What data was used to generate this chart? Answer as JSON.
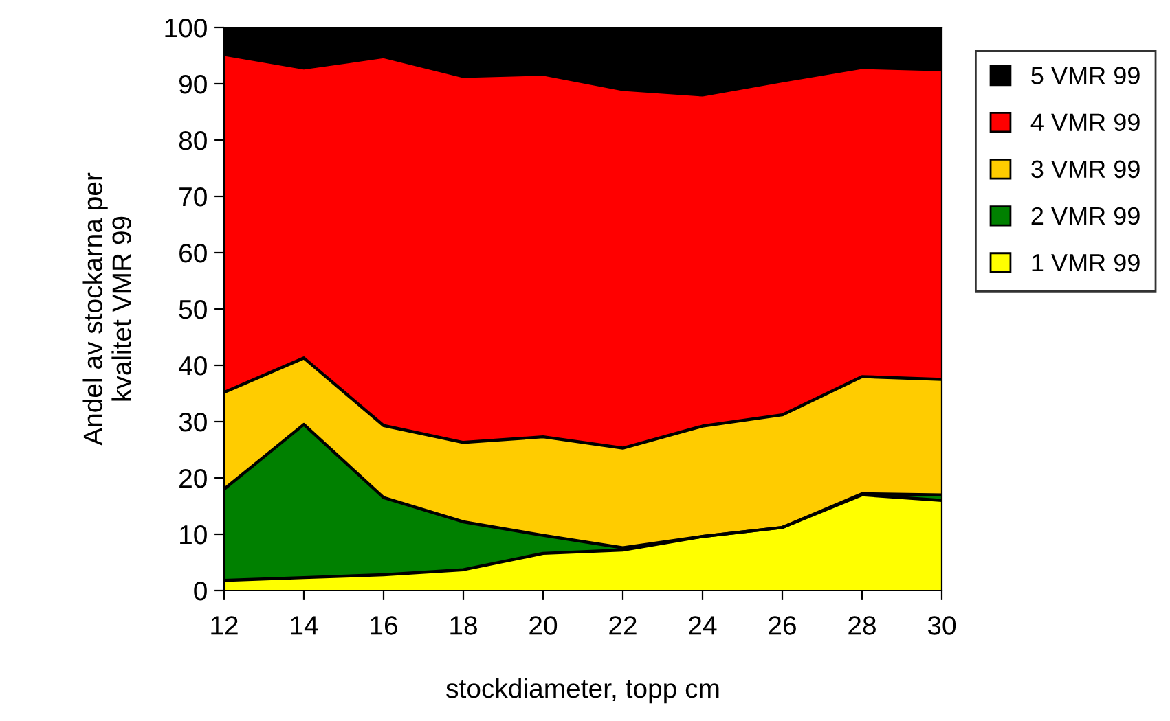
{
  "chart_data": {
    "type": "area",
    "stacked": true,
    "xlabel": "stockdiameter, topp cm",
    "ylabel": "Andel av stockarna per\nkvalitet VMR 99",
    "x": [
      12,
      14,
      16,
      18,
      20,
      22,
      24,
      26,
      28,
      30
    ],
    "xlim": [
      12,
      30
    ],
    "xticks": [
      12,
      14,
      16,
      18,
      20,
      22,
      24,
      26,
      28,
      30
    ],
    "ylim": [
      0,
      100
    ],
    "yticks": [
      0,
      10,
      20,
      30,
      40,
      50,
      60,
      70,
      80,
      90,
      100
    ],
    "grid": false,
    "legend": "right",
    "series": [
      {
        "name": "1 VMR 99",
        "color": "#ffff00",
        "values": [
          1.8,
          2.3,
          2.8,
          3.7,
          6.6,
          7.2,
          9.6,
          11.2,
          17,
          16
        ]
      },
      {
        "name": "2 VMR 99",
        "color": "#008000",
        "values": [
          16.2,
          27.2,
          13.7,
          8.5,
          3.2,
          0.4,
          0,
          0,
          0.2,
          1.0
        ]
      },
      {
        "name": "3 VMR 99",
        "color": "#ffcc00",
        "values": [
          17.2,
          11.8,
          12.8,
          14.1,
          17.5,
          17.7,
          19.6,
          20,
          20.8,
          20.5
        ]
      },
      {
        "name": "4 VMR 99",
        "color": "#ff0000",
        "values": [
          60,
          51.5,
          65.5,
          65,
          64.4,
          63.7,
          58.8,
          59.3,
          54.9,
          55
        ]
      },
      {
        "name": "5 VMR 99",
        "color": "#000000",
        "values": [
          4.8,
          7.2,
          5.2,
          8.7,
          8.3,
          11,
          12,
          9.5,
          7.1,
          7.5
        ]
      }
    ]
  }
}
